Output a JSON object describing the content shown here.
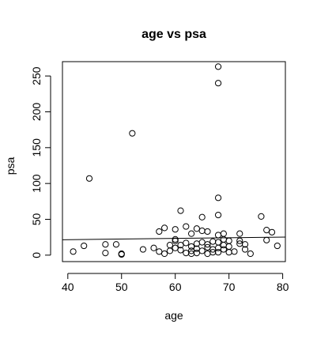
{
  "chart_data": {
    "type": "scatter",
    "title": "age vs psa",
    "xlabel": "age",
    "ylabel": "psa",
    "xlim": [
      39,
      80.5
    ],
    "ylim": [
      -9,
      270
    ],
    "xticks": [
      40,
      50,
      60,
      70,
      80
    ],
    "yticks": [
      0,
      50,
      100,
      150,
      200,
      250
    ],
    "grid": false,
    "legend": "none",
    "point_style": "open-circle",
    "point_color": "#000000",
    "trend_line": {
      "from": [
        39,
        21.5
      ],
      "to": [
        80.5,
        25.2
      ]
    },
    "points": [
      [
        41,
        5
      ],
      [
        43,
        13
      ],
      [
        44,
        107
      ],
      [
        47,
        3
      ],
      [
        47,
        15
      ],
      [
        49,
        15
      ],
      [
        50,
        1
      ],
      [
        50,
        2
      ],
      [
        52,
        170
      ],
      [
        54,
        8
      ],
      [
        56,
        10
      ],
      [
        57,
        5
      ],
      [
        57,
        33
      ],
      [
        58,
        2
      ],
      [
        58,
        38
      ],
      [
        59,
        14
      ],
      [
        59,
        6
      ],
      [
        60,
        20
      ],
      [
        60,
        10
      ],
      [
        60,
        36
      ],
      [
        60,
        22
      ],
      [
        61,
        62
      ],
      [
        61,
        14
      ],
      [
        61,
        7
      ],
      [
        62,
        3
      ],
      [
        62,
        40
      ],
      [
        62,
        17
      ],
      [
        63,
        6
      ],
      [
        63,
        12
      ],
      [
        63,
        30
      ],
      [
        63,
        2
      ],
      [
        64,
        3
      ],
      [
        64,
        9
      ],
      [
        64,
        16
      ],
      [
        64,
        37
      ],
      [
        65,
        53
      ],
      [
        65,
        18
      ],
      [
        65,
        6
      ],
      [
        65,
        34
      ],
      [
        66,
        2
      ],
      [
        66,
        11
      ],
      [
        66,
        15
      ],
      [
        66,
        33
      ],
      [
        67,
        4
      ],
      [
        67,
        8
      ],
      [
        67,
        19
      ],
      [
        68,
        263
      ],
      [
        68,
        240
      ],
      [
        68,
        80
      ],
      [
        68,
        56
      ],
      [
        68,
        28
      ],
      [
        68,
        18
      ],
      [
        68,
        10
      ],
      [
        68,
        4
      ],
      [
        69,
        30
      ],
      [
        69,
        22
      ],
      [
        69,
        14
      ],
      [
        69,
        8
      ],
      [
        70,
        4
      ],
      [
        70,
        12
      ],
      [
        70,
        20
      ],
      [
        71,
        5
      ],
      [
        72,
        16
      ],
      [
        72,
        30
      ],
      [
        72,
        20
      ],
      [
        73,
        8
      ],
      [
        73,
        15
      ],
      [
        74,
        2
      ],
      [
        76,
        54
      ],
      [
        77,
        21
      ],
      [
        77,
        35
      ],
      [
        78,
        32
      ],
      [
        79,
        13
      ]
    ]
  }
}
